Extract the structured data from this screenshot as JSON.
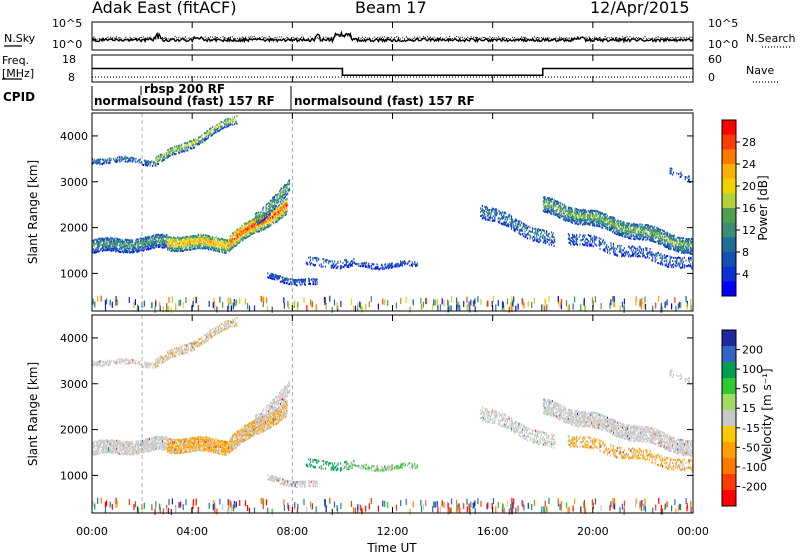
{
  "header": {
    "title": "Adak East (fitACF)",
    "beam": "Beam 17",
    "date": "12/Apr/2015"
  },
  "noise_panel": {
    "left_label": "N.Sky",
    "right_label": "N.Search",
    "left_ticks": [
      "10^5",
      "10^0"
    ],
    "right_ticks": [
      "10^5",
      "10^0"
    ]
  },
  "freq_panel": {
    "left_label_1": "Freq.",
    "left_label_2": "[MHz]",
    "left_ticks": [
      "18",
      "8"
    ],
    "right_label": "Nave",
    "right_ticks": [
      "60",
      "0"
    ]
  },
  "cpid": {
    "label": "CPID",
    "segments": [
      {
        "text": "normalsound (fast) 157 RF",
        "start_hour": 0
      },
      {
        "text": "rbsp 200 RF",
        "start_hour": 2
      },
      {
        "text": "normalsound (fast) 157 RF",
        "start_hour": 8
      }
    ]
  },
  "x_axis": {
    "label": "Time UT",
    "ticks": [
      "00:00",
      "04:00",
      "08:00",
      "12:00",
      "16:00",
      "20:00",
      "00:00"
    ]
  },
  "power_colorbar": {
    "label": "Power [dB]",
    "ticks": [
      "28",
      "24",
      "20",
      "16",
      "12",
      "8",
      "4"
    ],
    "colors": [
      "#ff0000",
      "#ff3c00",
      "#ff7800",
      "#ffaf00",
      "#f0d200",
      "#b4d23c",
      "#50a050",
      "#3c8c78",
      "#1e6e96",
      "#1450b4",
      "#0a32d2",
      "#0000ff"
    ]
  },
  "velocity_colorbar": {
    "label": "Velocity [m s⁻¹]",
    "ticks": [
      "200",
      "100",
      "50",
      "15",
      "-15",
      "-50",
      "-100",
      "-200"
    ],
    "colors": [
      "#1e28a0",
      "#3264c8",
      "#00a050",
      "#32c832",
      "#a0dc64",
      "#c8c8c8",
      "#ffc800",
      "#ffa000",
      "#ff7800",
      "#ff3c00",
      "#ff0000"
    ]
  },
  "chart_data": {
    "type": "heatmap",
    "x_range_hours": [
      0,
      24
    ],
    "y_range_km": [
      180,
      4500
    ],
    "ylabel": "Slant Range [km]",
    "y_ticks": [
      1000,
      2000,
      3000,
      4000
    ],
    "power_range_db": [
      0,
      30
    ],
    "velocity_range": [
      -250,
      250
    ],
    "scatter_features": [
      {
        "t0": 0.0,
        "t1": 3.0,
        "r0": 1600,
        "r1": 1700,
        "width": 300,
        "power": 10,
        "vel": 0,
        "density": 0.8
      },
      {
        "t0": 3.0,
        "t1": 5.5,
        "r0": 1700,
        "r1": 1650,
        "width": 320,
        "power": 18,
        "vel": -20,
        "density": 0.85
      },
      {
        "t0": 5.5,
        "t1": 7.8,
        "r0": 1700,
        "r1": 2500,
        "width": 350,
        "power": 22,
        "vel": -15,
        "density": 0.85
      },
      {
        "t0": 6.5,
        "t1": 7.9,
        "r0": 2200,
        "r1": 2900,
        "width": 300,
        "power": 12,
        "vel": 0,
        "density": 0.6
      },
      {
        "t0": 0.0,
        "t1": 2.5,
        "r0": 3500,
        "r1": 3450,
        "width": 120,
        "power": 8,
        "vel": 0,
        "density": 0.6
      },
      {
        "t0": 2.5,
        "t1": 5.8,
        "r0": 3450,
        "r1": 4400,
        "width": 200,
        "power": 14,
        "vel": -10,
        "density": 0.7
      },
      {
        "t0": 7.0,
        "t1": 9.0,
        "r0": 950,
        "r1": 800,
        "width": 150,
        "power": 6,
        "vel": 0,
        "density": 0.6
      },
      {
        "t0": 8.5,
        "t1": 10.5,
        "r0": 1250,
        "r1": 1250,
        "width": 200,
        "power": 6,
        "vel": 50,
        "density": 0.35
      },
      {
        "t0": 10.0,
        "t1": 13.0,
        "r0": 1200,
        "r1": 1200,
        "width": 120,
        "power": 6,
        "vel": 15,
        "density": 0.5
      },
      {
        "t0": 15.5,
        "t1": 18.5,
        "r0": 2400,
        "r1": 1700,
        "width": 300,
        "power": 8,
        "vel": 0,
        "density": 0.5
      },
      {
        "t0": 18.0,
        "t1": 24.0,
        "r0": 2500,
        "r1": 1600,
        "width": 350,
        "power": 12,
        "vel": 0,
        "density": 0.75
      },
      {
        "t0": 19.0,
        "t1": 24.0,
        "r0": 1800,
        "r1": 1200,
        "width": 250,
        "power": 6,
        "vel": -20,
        "density": 0.4
      },
      {
        "t0": 23.0,
        "t1": 24.0,
        "r0": 3300,
        "r1": 3000,
        "width": 150,
        "power": 6,
        "vel": 0,
        "density": 0.4
      }
    ],
    "frequency_mhz": [
      {
        "t0": 0.0,
        "t1": 10.0,
        "value": 13
      },
      {
        "t0": 10.0,
        "t1": 18.0,
        "value": 10.5
      },
      {
        "t0": 18.0,
        "t1": 24.0,
        "value": 13
      }
    ],
    "nave": [
      {
        "t0": 0.0,
        "t1": 24.0,
        "value": 11
      }
    ]
  }
}
